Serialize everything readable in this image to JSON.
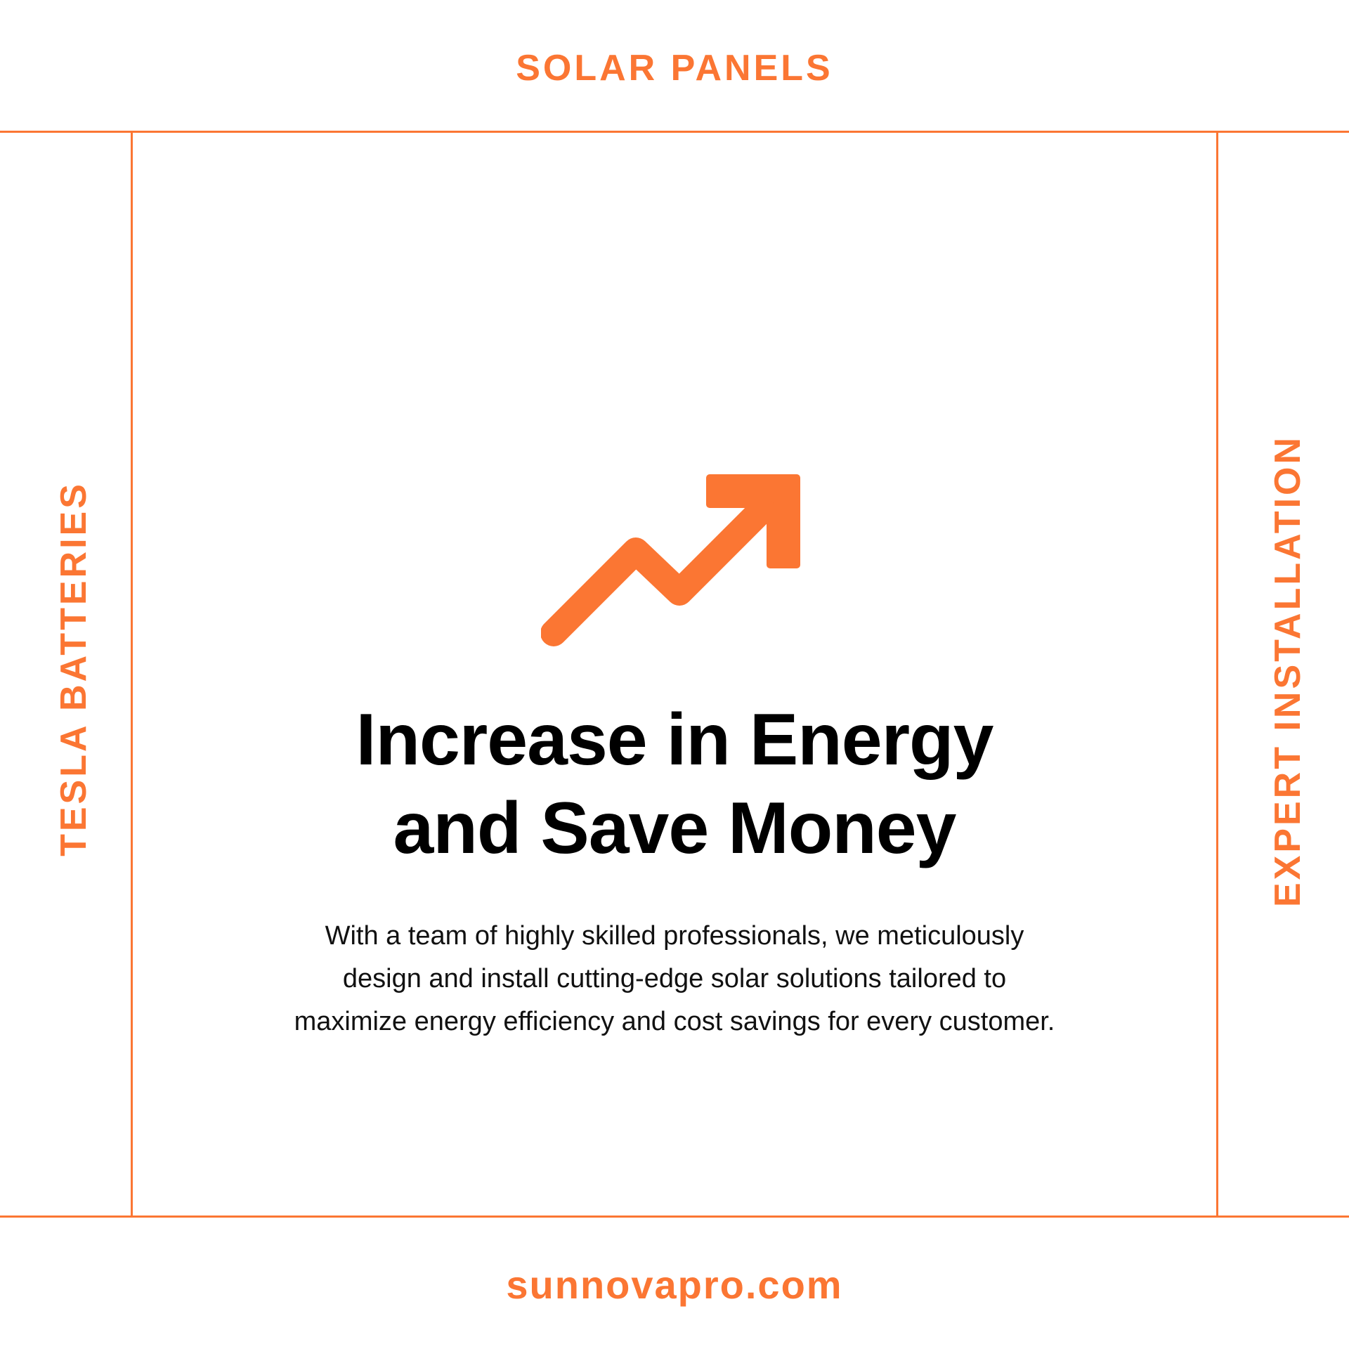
{
  "colors": {
    "accent": "#fb7633",
    "text": "#000000",
    "background": "#ffffff"
  },
  "frame": {
    "top_label": "SOLAR PANELS",
    "left_label": "TESLA BATTERIES",
    "right_label": "EXPERT INSTALLATION",
    "bottom_label": "sunnovapro.com"
  },
  "main": {
    "icon": "trend-up-arrow-icon",
    "headline_lines": [
      "Increase in Energy",
      "and Save Money"
    ],
    "body_lines": [
      "With a team of highly skilled professionals, we meticulously",
      "design and install cutting-edge solar solutions tailored to",
      "maximize energy efficiency and cost savings for every customer."
    ]
  }
}
